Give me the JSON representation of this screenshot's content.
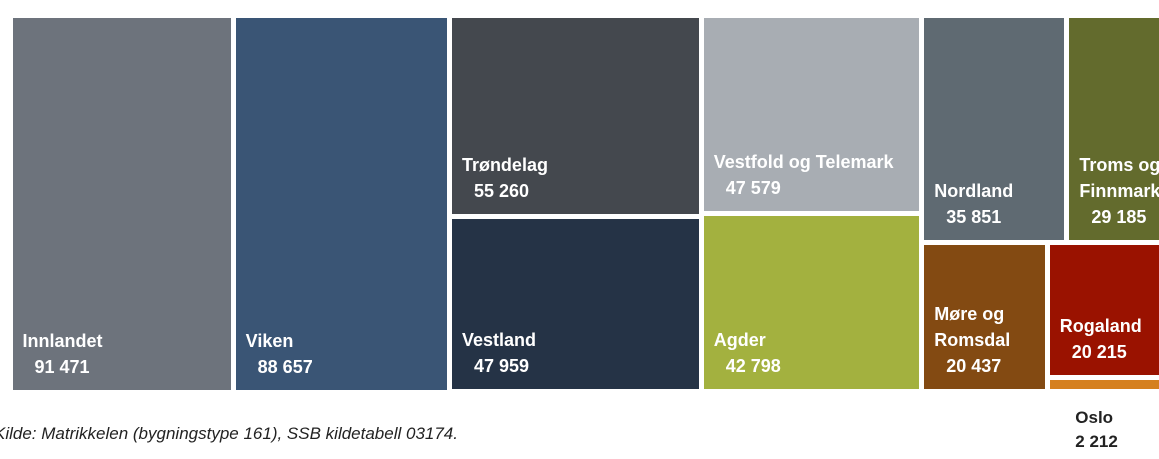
{
  "chart_data": {
    "type": "treemap",
    "categories": [
      "Innlandet",
      "Viken",
      "Trøndelag",
      "Vestland",
      "Vestfold og Telemark",
      "Agder",
      "Nordland",
      "Troms og Finnmark",
      "Møre og Romsdal",
      "Rogaland",
      "Oslo"
    ],
    "values": [
      91471,
      88657,
      55260,
      47959,
      47579,
      42798,
      35851,
      29185,
      20437,
      20215,
      2212
    ],
    "value_labels": [
      "91 471",
      "88 657",
      "55 260",
      "47 959",
      "47 579",
      "42 798",
      "35 851",
      "29 185",
      "20 437",
      "20 215",
      "2 212"
    ],
    "colors": [
      "#6d737c",
      "#3a5575",
      "#44484e",
      "#253346",
      "#a8adb3",
      "#a3b13f",
      "#5f6a72",
      "#636b2d",
      "#834a12",
      "#9a1200",
      "#d5801f"
    ],
    "source": "Kilde: Matrikkelen (bygningstype 161), SSB kildetabell 03174."
  }
}
